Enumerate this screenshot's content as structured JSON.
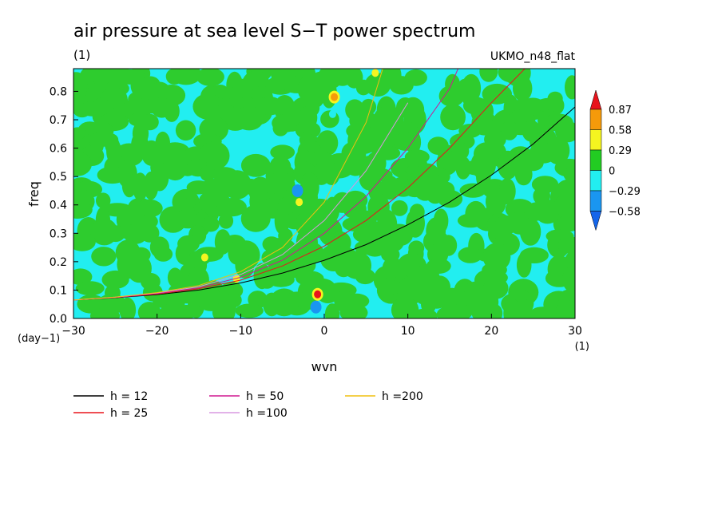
{
  "chart_data": {
    "type": "heatmap",
    "title": "air pressure at sea level S−T power spectrum",
    "subtitle_units": "(1)",
    "model_label": "UKMO_n48_flat",
    "xlabel": "wvn",
    "x_units": "(1)",
    "ylabel": "freq",
    "y_units": "(day−1)",
    "xlim": [
      -30,
      30
    ],
    "ylim": [
      0,
      0.88
    ],
    "x_ticks": [
      {
        "value": -30,
        "label": "−30"
      },
      {
        "value": -20,
        "label": "−20"
      },
      {
        "value": -10,
        "label": "−10"
      },
      {
        "value": 0,
        "label": "0"
      },
      {
        "value": 10,
        "label": "10"
      },
      {
        "value": 20,
        "label": "20"
      },
      {
        "value": 30,
        "label": "30"
      }
    ],
    "y_ticks": [
      {
        "value": 0.0,
        "label": "0.0"
      },
      {
        "value": 0.1,
        "label": "0.1"
      },
      {
        "value": 0.2,
        "label": "0.2"
      },
      {
        "value": 0.3,
        "label": "0.3"
      },
      {
        "value": 0.4,
        "label": "0.4"
      },
      {
        "value": 0.5,
        "label": "0.5"
      },
      {
        "value": 0.6,
        "label": "0.6"
      },
      {
        "value": 0.7,
        "label": "0.7"
      },
      {
        "value": 0.8,
        "label": "0.8"
      }
    ],
    "colorbar": {
      "levels": [
        "0.87",
        "0.58",
        "0.29",
        "0",
        "−0.29",
        "−0.58"
      ],
      "colors": [
        "#e8141c",
        "#f59a0a",
        "#f5f520",
        "#22cc22",
        "#22eef0",
        "#1a96f0",
        "#1465ea"
      ]
    },
    "field": {
      "background_colors": [
        "#22eef0",
        "#2ecc2e"
      ],
      "hotspots": [
        {
          "x": -0.8,
          "y": 0.085,
          "value": 0.87
        },
        {
          "x": -1.0,
          "y": 0.04,
          "value": -0.58
        },
        {
          "x": -3.2,
          "y": 0.45,
          "value": -0.58
        },
        {
          "x": 1.2,
          "y": 0.78,
          "value": 0.58
        },
        {
          "x": -10.5,
          "y": 0.14,
          "value": 0.29
        },
        {
          "x": -14.3,
          "y": 0.215,
          "value": 0.29
        },
        {
          "x": 1.0,
          "y": 0.72,
          "value": -0.29
        },
        {
          "x": 3.3,
          "y": 0.49,
          "value": -0.29
        },
        {
          "x": 6.1,
          "y": 0.865,
          "value": 0.29
        },
        {
          "x": -3.0,
          "y": 0.41,
          "value": 0.29
        }
      ]
    },
    "series": [
      {
        "name": "h = 12",
        "label": "h = 12",
        "color": "#000000",
        "x": [
          -30,
          -25,
          -20,
          -15,
          -10,
          -5,
          0,
          5,
          10,
          15,
          20,
          25,
          30
        ],
        "y": [
          0.065,
          0.073,
          0.084,
          0.1,
          0.125,
          0.16,
          0.205,
          0.26,
          0.33,
          0.41,
          0.505,
          0.615,
          0.745
        ]
      },
      {
        "name": "h = 25",
        "label": "h = 25",
        "color": "#e8141c",
        "x": [
          -30,
          -25,
          -20,
          -15,
          -10,
          -5,
          0,
          5,
          10,
          15,
          20,
          24
        ],
        "y": [
          0.065,
          0.074,
          0.086,
          0.105,
          0.135,
          0.185,
          0.255,
          0.345,
          0.46,
          0.6,
          0.76,
          0.88
        ]
      },
      {
        "name": "h = 50",
        "label": "h = 50",
        "color": "#d01890",
        "x": [
          -30,
          -25,
          -20,
          -15,
          -10,
          -5,
          0,
          5,
          10,
          15,
          16
        ],
        "y": [
          0.065,
          0.074,
          0.088,
          0.108,
          0.145,
          0.205,
          0.3,
          0.43,
          0.6,
          0.81,
          0.88
        ]
      },
      {
        "name": "h =100",
        "label": "h =100",
        "color": "#d898e0",
        "x": [
          -30,
          -25,
          -20,
          -15,
          -10,
          -5,
          0,
          5,
          10
        ],
        "y": [
          0.065,
          0.075,
          0.09,
          0.112,
          0.155,
          0.225,
          0.345,
          0.52,
          0.76
        ]
      },
      {
        "name": "h =200",
        "label": "h =200",
        "color": "#f0c010",
        "x": [
          -30,
          -25,
          -20,
          -15,
          -10,
          -5,
          0,
          5,
          7
        ],
        "y": [
          0.065,
          0.075,
          0.091,
          0.116,
          0.165,
          0.25,
          0.41,
          0.69,
          0.88
        ]
      }
    ]
  }
}
